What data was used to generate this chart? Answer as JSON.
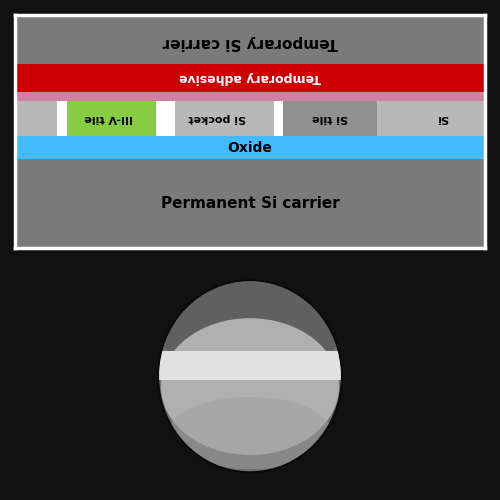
{
  "fig_width": 5.0,
  "fig_height": 5.0,
  "fig_bg": "#111111",
  "top_panel": {
    "bg_color": "#7a7a7a",
    "border_color": "#ffffff",
    "layers": {
      "temp_adhesive_color": "#cc0000",
      "adhesive_label": "Temporary adhesive",
      "pink_layer_color": "#d080a0",
      "si_layer_color": "#b8b8b8",
      "oxide_color": "#44bbff",
      "iii_v_color": "#88cc44",
      "si_tile_color": "#909090",
      "si_pocket_color": "#b0b0b0",
      "si_label": "Si",
      "si_tile_label": "Si tile",
      "si_pocket_label": "Si pocket",
      "iii_v_label": "III-V tile",
      "oxide_label": "Oxide",
      "temp_carrier_label": "Temporary Si carrier",
      "perm_carrier_label": "Permanent Si carrier"
    }
  },
  "bottom_panel": {
    "bg_color": "#000000",
    "outer_ring_color": "#1a1a1a",
    "wafer_gray_dark": "#6a6a6a",
    "wafer_gray_mid": "#a0a0a0",
    "wafer_gray_light": "#c8c8c8",
    "band_color": "#e2e2e2",
    "band_top_color": "#d0d0d0"
  }
}
